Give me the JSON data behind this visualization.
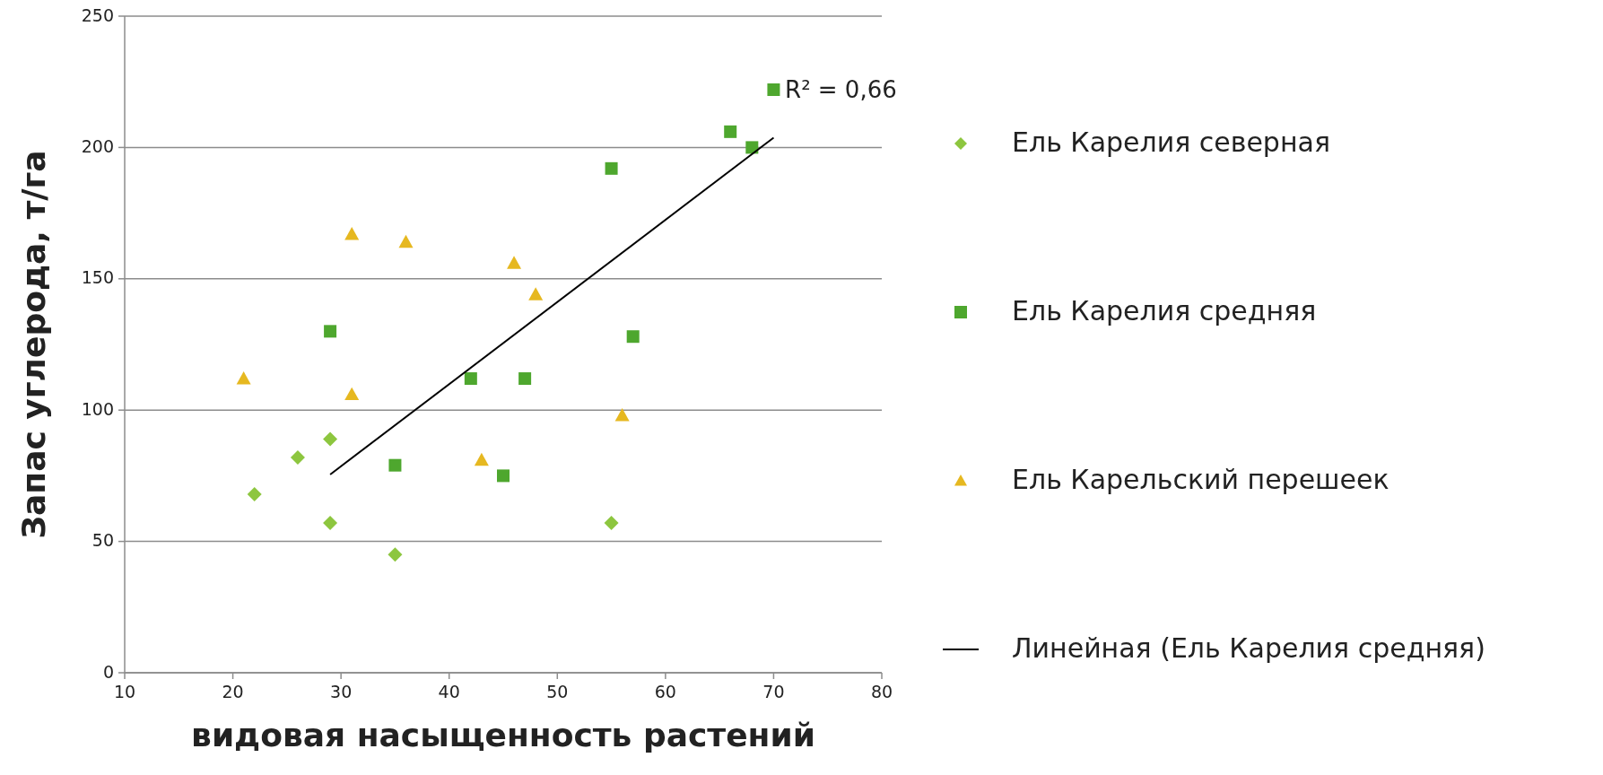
{
  "chart_data": {
    "type": "scatter",
    "xlabel": "видовая насыщенность растений",
    "ylabel": "Запас углерода, т/га",
    "xlim": [
      10,
      80
    ],
    "xticks": [
      10,
      20,
      30,
      40,
      50,
      60,
      70,
      80
    ],
    "ylim": [
      0,
      250
    ],
    "yticks": [
      0,
      50,
      100,
      150,
      200,
      250
    ],
    "grid": "y",
    "legend": "right",
    "annotations": [
      "R² = 0,66"
    ],
    "series": [
      {
        "name": "Ель Карелия северная",
        "color": "#8dc63f",
        "marker": "diamond",
        "x": [
          22,
          26,
          29,
          29,
          35,
          55
        ],
        "values": [
          68,
          82,
          89,
          57,
          45,
          57
        ]
      },
      {
        "name": "Ель Карелия средняя",
        "color": "#4ea72e",
        "marker": "square",
        "x": [
          29,
          35,
          42,
          45,
          47,
          55,
          57,
          66,
          68,
          70
        ],
        "values": [
          130,
          79,
          112,
          75,
          112,
          192,
          128,
          206,
          200,
          222
        ]
      },
      {
        "name": "Ель Карельский перешеек",
        "color": "#e6b820",
        "marker": "triangle",
        "x": [
          21,
          31,
          31,
          36,
          43,
          46,
          48,
          56
        ],
        "values": [
          112,
          167,
          106,
          164,
          81,
          156,
          144,
          98
        ]
      },
      {
        "name": "Линейная (Ель Карелия средняя)",
        "type": "line",
        "color": "#000000",
        "marker": "none",
        "line_style": "solid",
        "x": [
          29,
          70
        ],
        "values": [
          75.5,
          203.7
        ]
      }
    ]
  }
}
